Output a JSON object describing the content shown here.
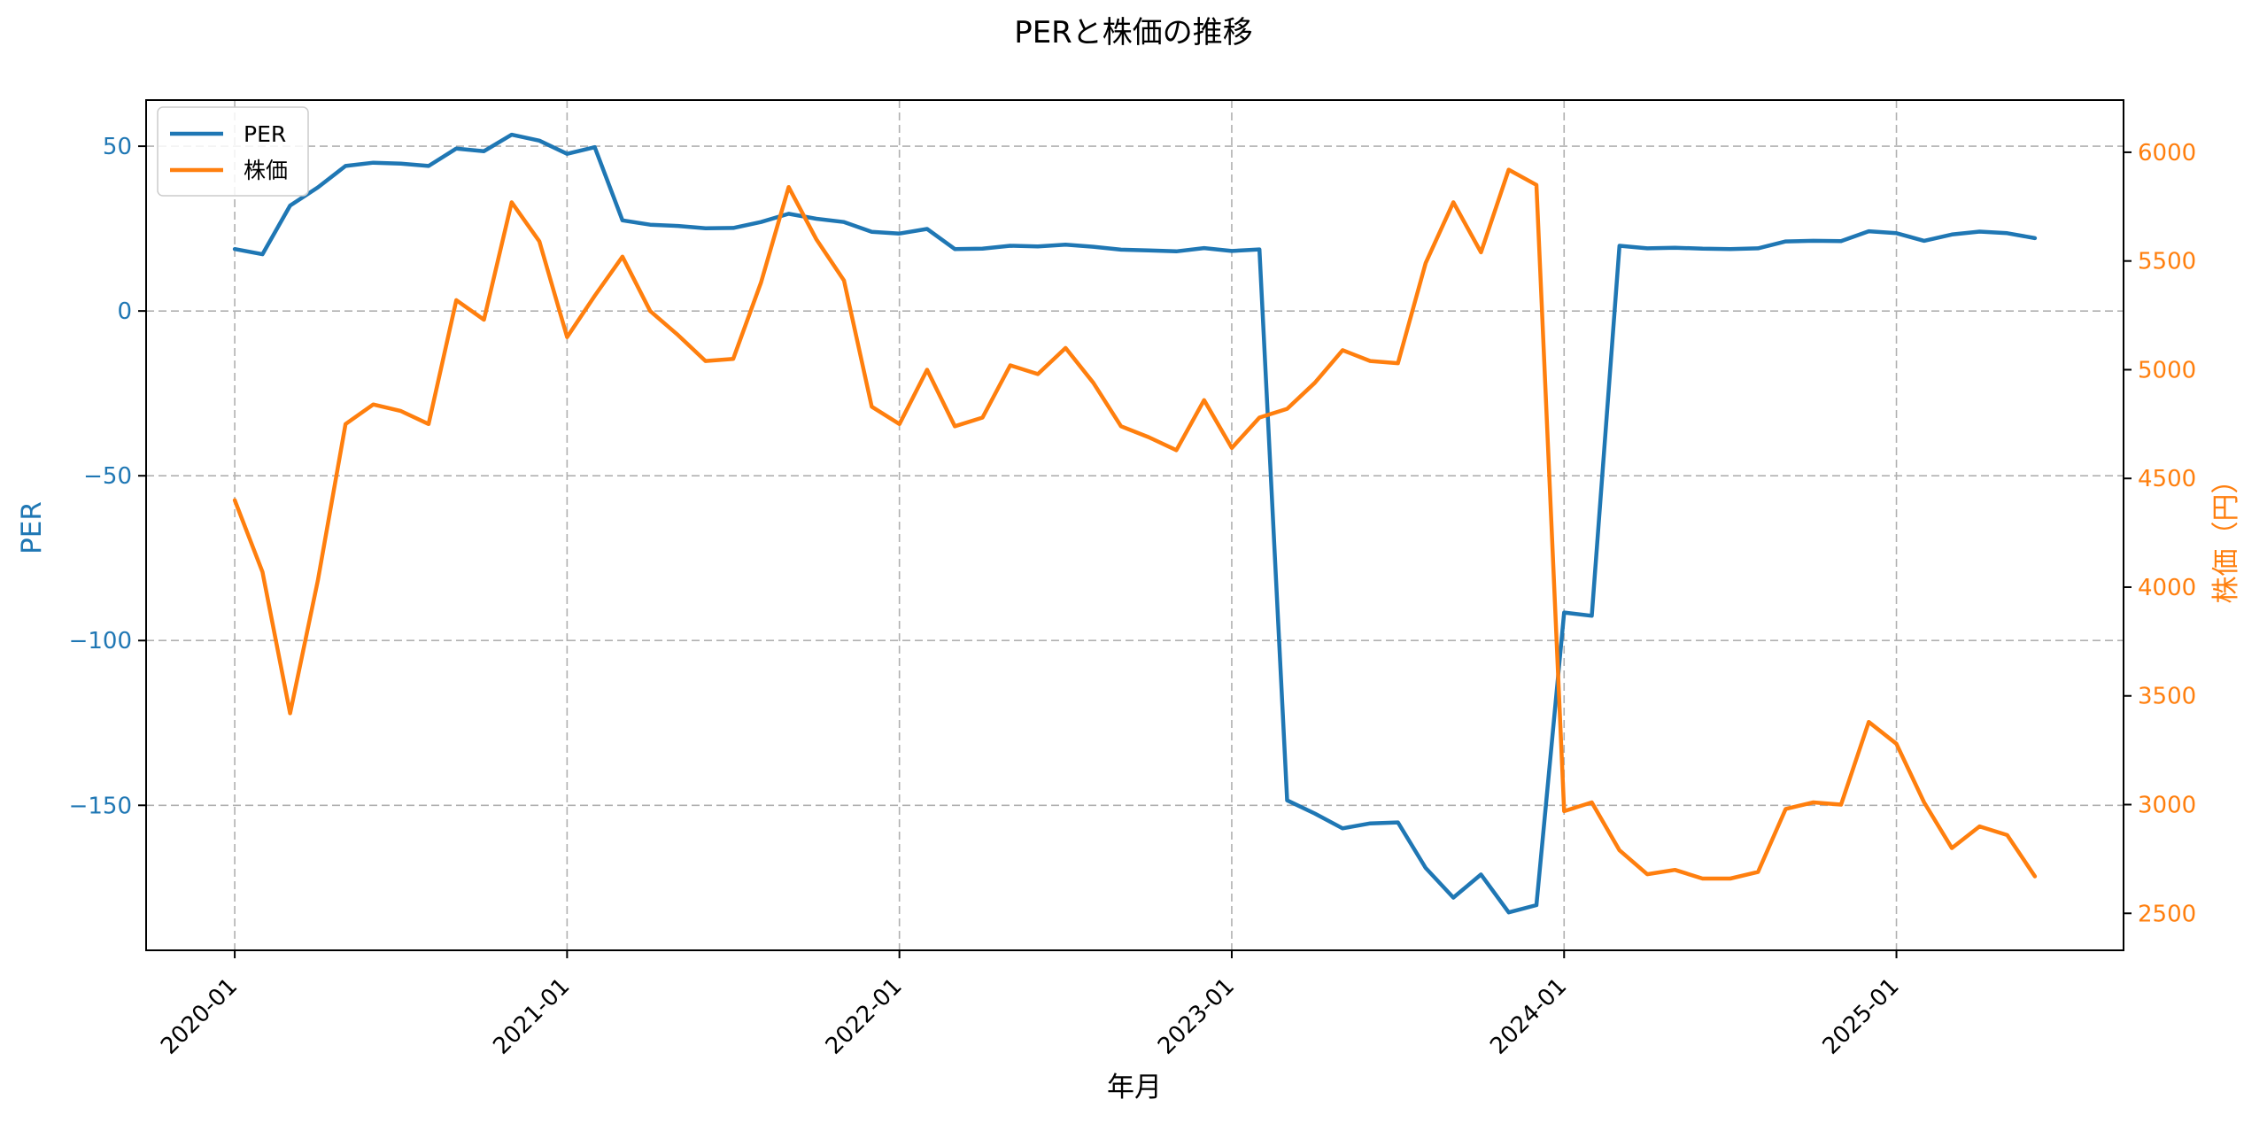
{
  "colors": {
    "per": "#1f77b4",
    "price": "#ff7f0e",
    "grid": "#b0b0b0",
    "axis": "#000000"
  },
  "chart_data": {
    "type": "line",
    "title": "PERと株価の推移",
    "xlabel": "年月",
    "ylabel_left": "PER",
    "ylabel_right": "株価（円）",
    "x_ticks": [
      "2020-01",
      "2021-01",
      "2022-01",
      "2023-01",
      "2024-01",
      "2025-01"
    ],
    "x_tick_months": [
      0,
      12,
      24,
      36,
      48,
      60
    ],
    "xlim_months": [
      -3.2,
      68.2
    ],
    "ylim_left": [
      -194,
      64
    ],
    "ylim_right": [
      2330,
      6240
    ],
    "y_ticks_left": [
      50,
      0,
      -50,
      -100,
      -150
    ],
    "y_ticks_left_labels": [
      "50",
      "0",
      "−50",
      "−100",
      "−150"
    ],
    "y_ticks_right": [
      6000,
      5500,
      5000,
      4500,
      4000,
      3500,
      3000,
      2500
    ],
    "y_ticks_right_labels": [
      "6000",
      "5500",
      "5000",
      "4500",
      "4000",
      "3500",
      "3000",
      "2500"
    ],
    "grid": true,
    "legend_position": "top-left",
    "legend": [
      "PER",
      "株価"
    ],
    "x_months": [
      0,
      1,
      2,
      3,
      4,
      5,
      6,
      7,
      8,
      9,
      10,
      11,
      12,
      13,
      14,
      15,
      16,
      17,
      18,
      19,
      20,
      21,
      22,
      23,
      24,
      25,
      26,
      27,
      28,
      29,
      30,
      31,
      32,
      33,
      34,
      35,
      36,
      37,
      38,
      39,
      40,
      41,
      42,
      43,
      44,
      45,
      46,
      47,
      48,
      49,
      50,
      51,
      52,
      53,
      54,
      55,
      56,
      57,
      58,
      59,
      60,
      61,
      62,
      63,
      64,
      65
    ],
    "series": [
      {
        "name": "PER",
        "axis": "left",
        "values": [
          18.8,
          17.2,
          32,
          37.5,
          44,
          45,
          44.7,
          44,
          49.3,
          48.5,
          53.5,
          51.7,
          47.7,
          49.7,
          27.5,
          26.2,
          25.8,
          25.1,
          25.2,
          27,
          29.5,
          28,
          27,
          24,
          23.5,
          24.9,
          18.8,
          18.9,
          19.8,
          19.6,
          20.1,
          19.5,
          18.6,
          18.4,
          18.1,
          19.1,
          18.2,
          18.7,
          -148.5,
          -152.5,
          -157,
          -155.5,
          -155.2,
          -169,
          -178,
          -171,
          -182.5,
          -180.3,
          -91.5,
          -92.5,
          19.8,
          19,
          19.2,
          18.9,
          18.8,
          19,
          21.1,
          21.3,
          21.2,
          24.2,
          23.6,
          21.3,
          23.2,
          24.1,
          23.6,
          22.1
        ]
      },
      {
        "name": "株価",
        "axis": "right",
        "values": [
          4400,
          4070,
          3420,
          4030,
          4750,
          4840,
          4810,
          4750,
          5320,
          5230,
          5770,
          5590,
          5150,
          5340,
          5520,
          5270,
          5160,
          5040,
          5050,
          5400,
          5840,
          5600,
          5410,
          4830,
          4750,
          5000,
          4740,
          4780,
          5020,
          4980,
          5100,
          4940,
          4740,
          4690,
          4630,
          4860,
          4640,
          4780,
          4820,
          4940,
          5090,
          5040,
          5030,
          5490,
          5770,
          5540,
          5920,
          5850,
          2970,
          3010,
          2790,
          2680,
          2700,
          2660,
          2660,
          2690,
          2980,
          3010,
          3000,
          3380,
          3280,
          3010,
          2800,
          2900,
          2860,
          2670
        ]
      }
    ]
  }
}
